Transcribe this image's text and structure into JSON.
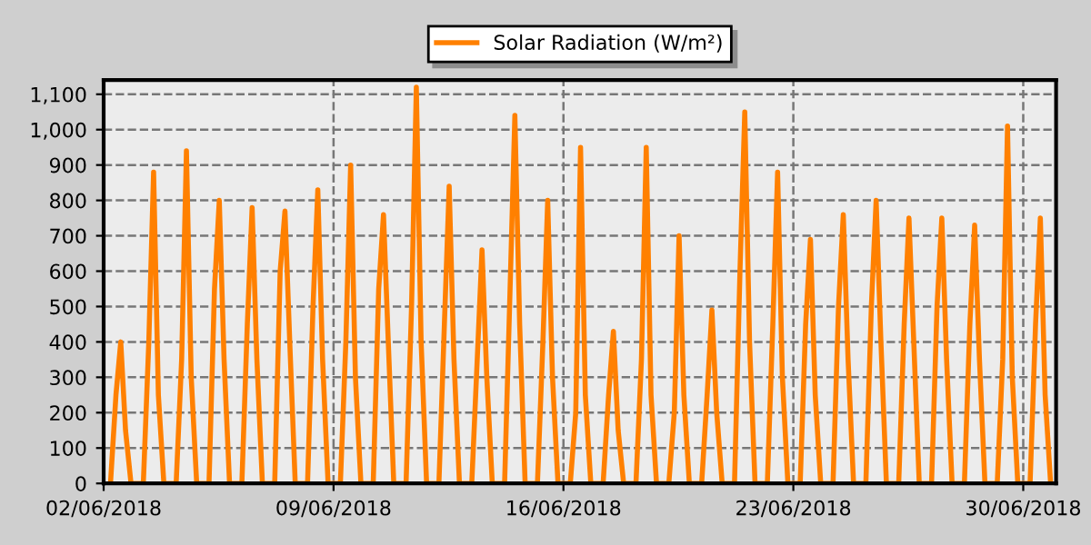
{
  "chart_data": {
    "type": "line",
    "x": [
      "2018-06-02T05:00",
      "2018-06-02T09:00",
      "2018-06-02T12:30",
      "2018-06-02T16:00",
      "2018-06-02T20:00",
      "2018-06-03T05:00",
      "2018-06-03T09:00",
      "2018-06-03T12:30",
      "2018-06-03T16:00",
      "2018-06-03T20:00",
      "2018-06-04T05:00",
      "2018-06-04T09:00",
      "2018-06-04T12:30",
      "2018-06-04T16:00",
      "2018-06-04T20:00",
      "2018-06-05T05:00",
      "2018-06-05T09:00",
      "2018-06-05T12:30",
      "2018-06-05T16:00",
      "2018-06-05T20:00",
      "2018-06-06T05:00",
      "2018-06-06T09:00",
      "2018-06-06T12:30",
      "2018-06-06T16:00",
      "2018-06-06T20:00",
      "2018-06-07T05:00",
      "2018-06-07T09:00",
      "2018-06-07T12:30",
      "2018-06-07T16:00",
      "2018-06-07T20:00",
      "2018-06-08T05:00",
      "2018-06-08T09:00",
      "2018-06-08T12:30",
      "2018-06-08T16:00",
      "2018-06-08T20:00",
      "2018-06-09T05:00",
      "2018-06-09T09:00",
      "2018-06-09T12:30",
      "2018-06-09T16:00",
      "2018-06-09T20:00",
      "2018-06-10T05:00",
      "2018-06-10T09:00",
      "2018-06-10T12:30",
      "2018-06-10T16:00",
      "2018-06-10T20:00",
      "2018-06-11T05:00",
      "2018-06-11T09:00",
      "2018-06-11T12:30",
      "2018-06-11T16:00",
      "2018-06-11T20:00",
      "2018-06-12T05:00",
      "2018-06-12T09:00",
      "2018-06-12T12:30",
      "2018-06-12T16:00",
      "2018-06-12T20:00",
      "2018-06-13T05:00",
      "2018-06-13T09:00",
      "2018-06-13T12:30",
      "2018-06-13T16:00",
      "2018-06-13T20:00",
      "2018-06-14T05:00",
      "2018-06-14T09:00",
      "2018-06-14T12:30",
      "2018-06-14T16:00",
      "2018-06-14T20:00",
      "2018-06-15T05:00",
      "2018-06-15T09:00",
      "2018-06-15T12:30",
      "2018-06-15T16:00",
      "2018-06-15T20:00",
      "2018-06-16T05:00",
      "2018-06-16T09:00",
      "2018-06-16T12:30",
      "2018-06-16T16:00",
      "2018-06-16T20:00",
      "2018-06-17T05:00",
      "2018-06-17T09:00",
      "2018-06-17T12:30",
      "2018-06-17T16:00",
      "2018-06-17T20:00",
      "2018-06-18T05:00",
      "2018-06-18T09:00",
      "2018-06-18T12:30",
      "2018-06-18T16:00",
      "2018-06-18T20:00",
      "2018-06-19T05:00",
      "2018-06-19T09:00",
      "2018-06-19T12:30",
      "2018-06-19T16:00",
      "2018-06-19T20:00",
      "2018-06-20T05:00",
      "2018-06-20T09:00",
      "2018-06-20T12:30",
      "2018-06-20T16:00",
      "2018-06-20T20:00",
      "2018-06-21T05:00",
      "2018-06-21T09:00",
      "2018-06-21T12:30",
      "2018-06-21T16:00",
      "2018-06-21T20:00",
      "2018-06-22T05:00",
      "2018-06-22T09:00",
      "2018-06-22T12:30",
      "2018-06-22T16:00",
      "2018-06-22T20:00",
      "2018-06-23T05:00",
      "2018-06-23T09:00",
      "2018-06-23T12:30",
      "2018-06-23T16:00",
      "2018-06-23T20:00",
      "2018-06-24T05:00",
      "2018-06-24T09:00",
      "2018-06-24T12:30",
      "2018-06-24T16:00",
      "2018-06-24T20:00",
      "2018-06-25T05:00",
      "2018-06-25T09:00",
      "2018-06-25T12:30",
      "2018-06-25T16:00",
      "2018-06-25T20:00",
      "2018-06-26T05:00",
      "2018-06-26T09:00",
      "2018-06-26T12:30",
      "2018-06-26T16:00",
      "2018-06-26T20:00",
      "2018-06-27T05:00",
      "2018-06-27T09:00",
      "2018-06-27T12:30",
      "2018-06-27T16:00",
      "2018-06-27T20:00",
      "2018-06-28T05:00",
      "2018-06-28T09:00",
      "2018-06-28T12:30",
      "2018-06-28T16:00",
      "2018-06-28T20:00",
      "2018-06-29T05:00",
      "2018-06-29T09:00",
      "2018-06-29T12:30",
      "2018-06-29T16:00",
      "2018-06-29T20:00",
      "2018-06-30T05:00",
      "2018-06-30T09:00",
      "2018-06-30T12:30",
      "2018-06-30T16:00",
      "2018-06-30T20:00"
    ],
    "series": [
      {
        "name": "Solar Radiation (W/m²)",
        "color": "#ff8000",
        "values": [
          0,
          250,
          400,
          150,
          0,
          0,
          400,
          880,
          250,
          0,
          0,
          350,
          940,
          300,
          0,
          0,
          550,
          800,
          350,
          0,
          0,
          450,
          780,
          350,
          0,
          0,
          600,
          770,
          400,
          0,
          0,
          500,
          830,
          350,
          0,
          0,
          400,
          900,
          300,
          0,
          0,
          550,
          760,
          400,
          0,
          0,
          500,
          1120,
          400,
          0,
          0,
          450,
          840,
          350,
          0,
          0,
          350,
          660,
          300,
          0,
          0,
          550,
          1040,
          450,
          0,
          0,
          400,
          800,
          300,
          0,
          0,
          200,
          950,
          250,
          0,
          0,
          250,
          430,
          150,
          0,
          0,
          350,
          950,
          250,
          0,
          0,
          200,
          700,
          250,
          0,
          0,
          250,
          490,
          200,
          0,
          0,
          600,
          1050,
          400,
          0,
          0,
          450,
          880,
          300,
          0,
          0,
          450,
          690,
          250,
          0,
          0,
          500,
          760,
          350,
          0,
          0,
          500,
          800,
          400,
          0,
          0,
          450,
          750,
          400,
          0,
          0,
          500,
          750,
          350,
          0,
          0,
          450,
          730,
          350,
          0,
          0,
          350,
          1010,
          300,
          0,
          0,
          450,
          750,
          250,
          0
        ]
      }
    ],
    "xlim": [
      "2018-06-02",
      "2018-07-01"
    ],
    "xticks": [
      {
        "value": "2018-06-02",
        "label": "02/06/2018"
      },
      {
        "value": "2018-06-09",
        "label": "09/06/2018"
      },
      {
        "value": "2018-06-16",
        "label": "16/06/2018"
      },
      {
        "value": "2018-06-23",
        "label": "23/06/2018"
      },
      {
        "value": "2018-06-30",
        "label": "30/06/2018"
      }
    ],
    "ylim": [
      0,
      1140
    ],
    "yticks": [
      0,
      100,
      200,
      300,
      400,
      500,
      600,
      700,
      800,
      900,
      {
        "value": 1000,
        "label": "1,000"
      },
      {
        "value": 1100,
        "label": "1,100"
      }
    ],
    "grid": true,
    "legend": "top",
    "marker": "none",
    "line_style": "solid"
  }
}
